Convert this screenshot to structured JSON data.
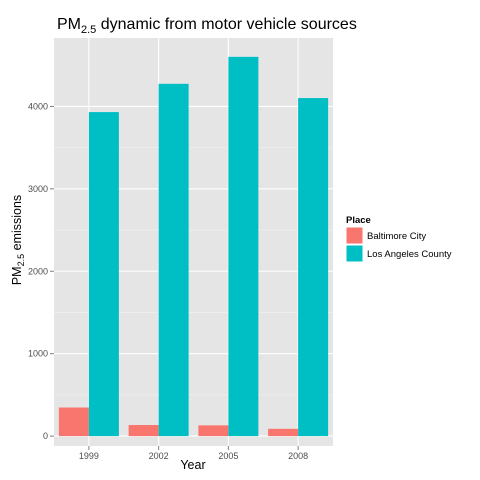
{
  "chart_data": {
    "type": "bar",
    "title": {
      "main": "PM",
      "sub": "2.5",
      "rest": " dynamic from motor vehicle sources"
    },
    "xlabel": "Year",
    "ylabel": {
      "main": "PM",
      "sub": "2.5",
      "rest": " emissions"
    },
    "categories": [
      "1999",
      "2002",
      "2005",
      "2008"
    ],
    "series": [
      {
        "name": "Baltimore City",
        "color": "#F8766D",
        "values": [
          346.8,
          134.3,
          130.4,
          88.3
        ]
      },
      {
        "name": "Los Angeles County",
        "color": "#00BFC4",
        "values": [
          3931.1,
          4274.0,
          4601.4,
          4101.3
        ]
      }
    ],
    "ylim": [
      -120,
      4830
    ],
    "yticks": [
      0,
      1000,
      2000,
      3000,
      4000
    ],
    "grid": true,
    "panel_bg": "#E5E5E5",
    "legend": {
      "title": "Place",
      "position": "right"
    }
  }
}
